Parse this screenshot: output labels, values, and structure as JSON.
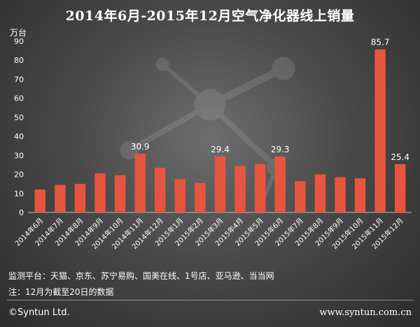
{
  "chart_data": {
    "type": "bar",
    "title": "2014年6月-2015年12月空气净化器线上销量",
    "unit_label": "万台",
    "categories": [
      "2014年6月",
      "2014年7月",
      "2014年8月",
      "2014年9月",
      "2014年10月",
      "2014年11月",
      "2014年12月",
      "2015年1月",
      "2015年2月",
      "2015年3月",
      "2015年4月",
      "2015年5月",
      "2015年6月",
      "2015年7月",
      "2015年8月",
      "2015年9月",
      "2015年10月",
      "2015年11月",
      "2015年12月"
    ],
    "values": [
      12,
      14.5,
      15,
      20.5,
      19.5,
      30.9,
      23.5,
      17.5,
      15.5,
      29.4,
      24.5,
      25.5,
      29.3,
      16.5,
      20,
      18.5,
      18,
      85.7,
      25.4
    ],
    "data_labels": {
      "5": "30.9",
      "9": "29.4",
      "12": "29.3",
      "17": "85.7",
      "18": "25.4"
    },
    "ylim": [
      0,
      90
    ],
    "yticks": [
      0,
      10,
      20,
      30,
      40,
      50,
      60,
      70,
      80,
      90
    ],
    "grid": false,
    "bar_color": "#e8553e"
  },
  "notes": {
    "platforms": "监测平台：天猫、京东、苏宁易购、国美在线、1号店、亚马逊、当当网",
    "date_note": "注：12月为截至20日的数据"
  },
  "footer": {
    "copyright": "©Syntun Ltd.",
    "url": "www.syntun.com.cn"
  }
}
